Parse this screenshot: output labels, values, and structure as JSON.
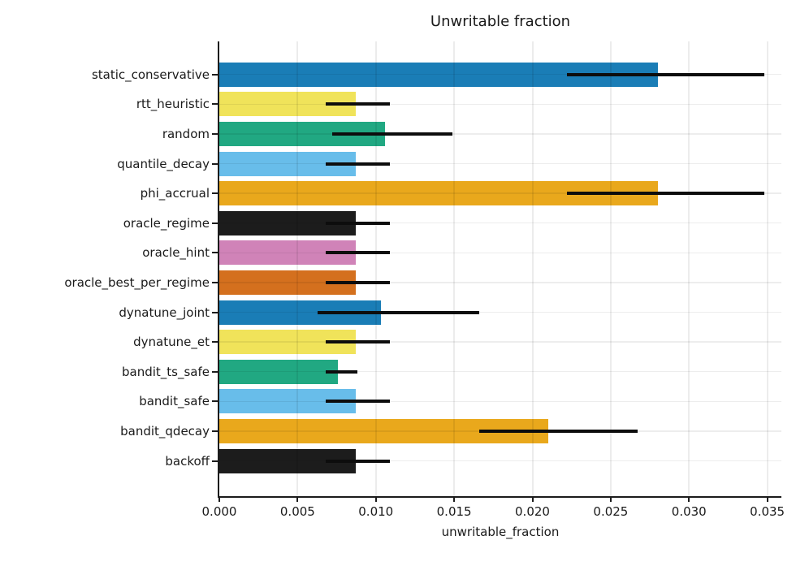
{
  "chart_data": {
    "type": "bar",
    "orientation": "horizontal",
    "title": "Unwritable fraction",
    "xlabel": "unwritable_fraction",
    "ylabel": "",
    "grid": true,
    "legend": false,
    "xlim": [
      0,
      0.0359
    ],
    "xticks": [
      0,
      0.005,
      0.01,
      0.015,
      0.02,
      0.025,
      0.03,
      0.035
    ],
    "xtick_labels": [
      "0.000",
      "0.005",
      "0.010",
      "0.015",
      "0.020",
      "0.025",
      "0.030",
      "0.035"
    ],
    "categories": [
      "static_conservative",
      "rtt_heuristic",
      "random",
      "quantile_decay",
      "phi_accrual",
      "oracle_regime",
      "oracle_hint",
      "oracle_best_per_regime",
      "dynatune_joint",
      "dynatune_et",
      "bandit_ts_safe",
      "bandit_safe",
      "bandit_qdecay",
      "backoff"
    ],
    "series": [
      {
        "name": "unwritable_fraction",
        "values": [
          0.028,
          0.0087,
          0.0106,
          0.0087,
          0.028,
          0.0087,
          0.0087,
          0.0087,
          0.0103,
          0.0087,
          0.0076,
          0.0087,
          0.021,
          0.0087
        ]
      }
    ],
    "error_low": [
      0.0222,
      0.0068,
      0.0072,
      0.0068,
      0.0222,
      0.0068,
      0.0068,
      0.0068,
      0.0063,
      0.0068,
      0.0068,
      0.0068,
      0.0166,
      0.0068
    ],
    "error_high": [
      0.0348,
      0.0109,
      0.0149,
      0.0109,
      0.0348,
      0.0109,
      0.0109,
      0.0109,
      0.0166,
      0.0109,
      0.0088,
      0.0109,
      0.0267,
      0.0109
    ],
    "bar_colors": [
      "#1a7db6",
      "#f0e35a",
      "#21a882",
      "#68bdea",
      "#e9a81c",
      "#1c1c1c",
      "#d083b8",
      "#d4701e",
      "#1a7db6",
      "#f0e35a",
      "#21a882",
      "#68bdea",
      "#e9a81c",
      "#1c1c1c"
    ]
  },
  "colors": {
    "error_bar": "#0d0d0d",
    "axis": "#1c1c1c",
    "grid": "#ebebeb",
    "text": "#1a1a1a",
    "background": "#ffffff"
  }
}
